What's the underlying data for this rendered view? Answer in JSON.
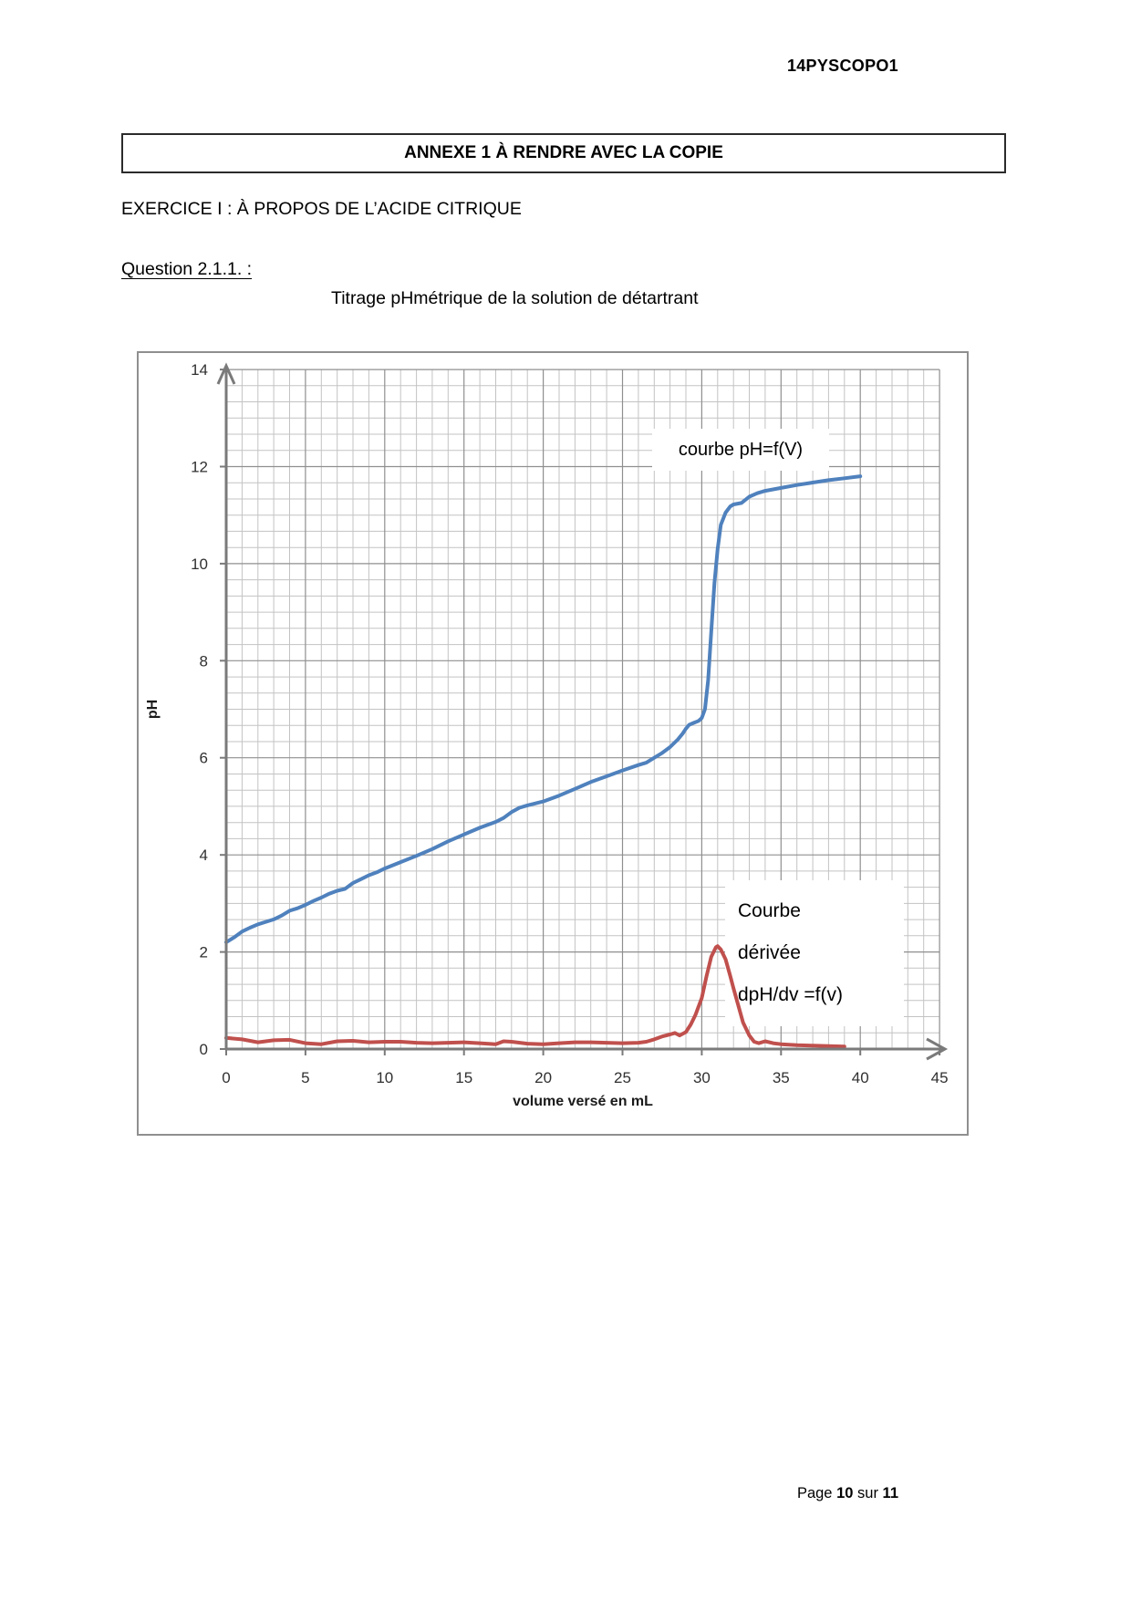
{
  "doc": {
    "header_code": "14PYSCOPO1",
    "annexe_title": "ANNEXE 1 À RENDRE AVEC LA COPIE",
    "exercise_title": "EXERCICE I : À PROPOS DE L’ACIDE CITRIQUE",
    "question_label": "Question 2.1.1. :",
    "chart_heading": "Titrage pHmétrique de la solution de détartrant",
    "footer": {
      "page_word": "Page",
      "page_number": "10",
      "separator_word": "sur",
      "total_pages": "11"
    }
  },
  "chart_data": {
    "type": "line",
    "title": "Titrage pHmétrique de la solution de détartrant",
    "xlabel": "volume versé en mL",
    "ylabel": "pH",
    "xlim": [
      0,
      45
    ],
    "ylim": [
      0,
      14
    ],
    "x_ticks": [
      0,
      5,
      10,
      15,
      20,
      25,
      30,
      35,
      40,
      45
    ],
    "y_ticks": [
      0,
      2,
      4,
      6,
      8,
      10,
      12,
      14
    ],
    "x_minor_step": 1,
    "y_minor_divisions_per_major": 6,
    "grid": true,
    "legend_position": "none",
    "annotations": [
      {
        "id": "ph-curve-label",
        "text": "courbe pH=f(V)"
      },
      {
        "id": "derivative-curve-label",
        "lines": [
          "Courbe",
          "dérivée",
          "dpH/dv =f(v)"
        ]
      }
    ],
    "series": [
      {
        "name": "courbe pH=f(V)",
        "color": "#4F81BD",
        "x": [
          0,
          0.5,
          1,
          1.5,
          2,
          2.5,
          3,
          3.5,
          4,
          4.5,
          5,
          5.5,
          6,
          6.5,
          7,
          7.5,
          8,
          8.5,
          9,
          9.5,
          10,
          11,
          12,
          13,
          14,
          15,
          16,
          17,
          17.5,
          18,
          18.5,
          19,
          20,
          21,
          22,
          23,
          24,
          25,
          26,
          26.5,
          27,
          27.5,
          28,
          28.5,
          28.8,
          29,
          29.2,
          29.5,
          29.8,
          30,
          30.2,
          30.4,
          30.6,
          30.8,
          31,
          31.2,
          31.5,
          31.8,
          32,
          32.5,
          33,
          33.5,
          34,
          35,
          36,
          37,
          38,
          39,
          40
        ],
        "y": [
          2.2,
          2.3,
          2.42,
          2.5,
          2.57,
          2.62,
          2.67,
          2.75,
          2.85,
          2.9,
          2.97,
          3.05,
          3.12,
          3.2,
          3.26,
          3.3,
          3.42,
          3.5,
          3.58,
          3.64,
          3.72,
          3.85,
          3.98,
          4.12,
          4.28,
          4.42,
          4.56,
          4.68,
          4.76,
          4.88,
          4.97,
          5.02,
          5.1,
          5.22,
          5.36,
          5.5,
          5.62,
          5.74,
          5.85,
          5.9,
          6.0,
          6.1,
          6.22,
          6.38,
          6.5,
          6.6,
          6.68,
          6.72,
          6.76,
          6.82,
          7.0,
          7.6,
          8.6,
          9.6,
          10.3,
          10.8,
          11.05,
          11.18,
          11.22,
          11.25,
          11.38,
          11.45,
          11.5,
          11.56,
          11.62,
          11.67,
          11.72,
          11.76,
          11.8
        ]
      },
      {
        "name": "Courbe dérivée dpH/dv =f(v)",
        "color": "#C0504D",
        "x": [
          0,
          1,
          2,
          3,
          4,
          5,
          6,
          7,
          8,
          9,
          10,
          11,
          12,
          13,
          14,
          15,
          16,
          17,
          17.5,
          18,
          19,
          20,
          21,
          22,
          23,
          24,
          25,
          26,
          26.5,
          27,
          27.5,
          28,
          28.3,
          28.6,
          29,
          29.3,
          29.6,
          30,
          30.3,
          30.6,
          30.9,
          31,
          31.2,
          31.5,
          31.8,
          32,
          32.3,
          32.6,
          33,
          33.3,
          33.6,
          34,
          34.5,
          35,
          36,
          37,
          38,
          39
        ],
        "y": [
          0.23,
          0.2,
          0.14,
          0.18,
          0.19,
          0.12,
          0.1,
          0.16,
          0.17,
          0.14,
          0.15,
          0.15,
          0.13,
          0.12,
          0.13,
          0.14,
          0.12,
          0.1,
          0.16,
          0.15,
          0.11,
          0.1,
          0.12,
          0.14,
          0.14,
          0.13,
          0.12,
          0.13,
          0.15,
          0.2,
          0.26,
          0.3,
          0.33,
          0.28,
          0.35,
          0.5,
          0.7,
          1.05,
          1.5,
          1.9,
          2.1,
          2.12,
          2.05,
          1.85,
          1.5,
          1.25,
          0.9,
          0.55,
          0.28,
          0.15,
          0.12,
          0.16,
          0.12,
          0.1,
          0.08,
          0.07,
          0.06,
          0.05
        ]
      }
    ]
  },
  "colors": {
    "ph_curve": "#4F81BD",
    "derivative_curve": "#C0504D",
    "grid_minor": "#c3c3c3",
    "grid_major": "#8f8f8f",
    "axis": "#7a7a7a",
    "figure_border": "#8f8f8f",
    "tick_text": "#303030"
  }
}
